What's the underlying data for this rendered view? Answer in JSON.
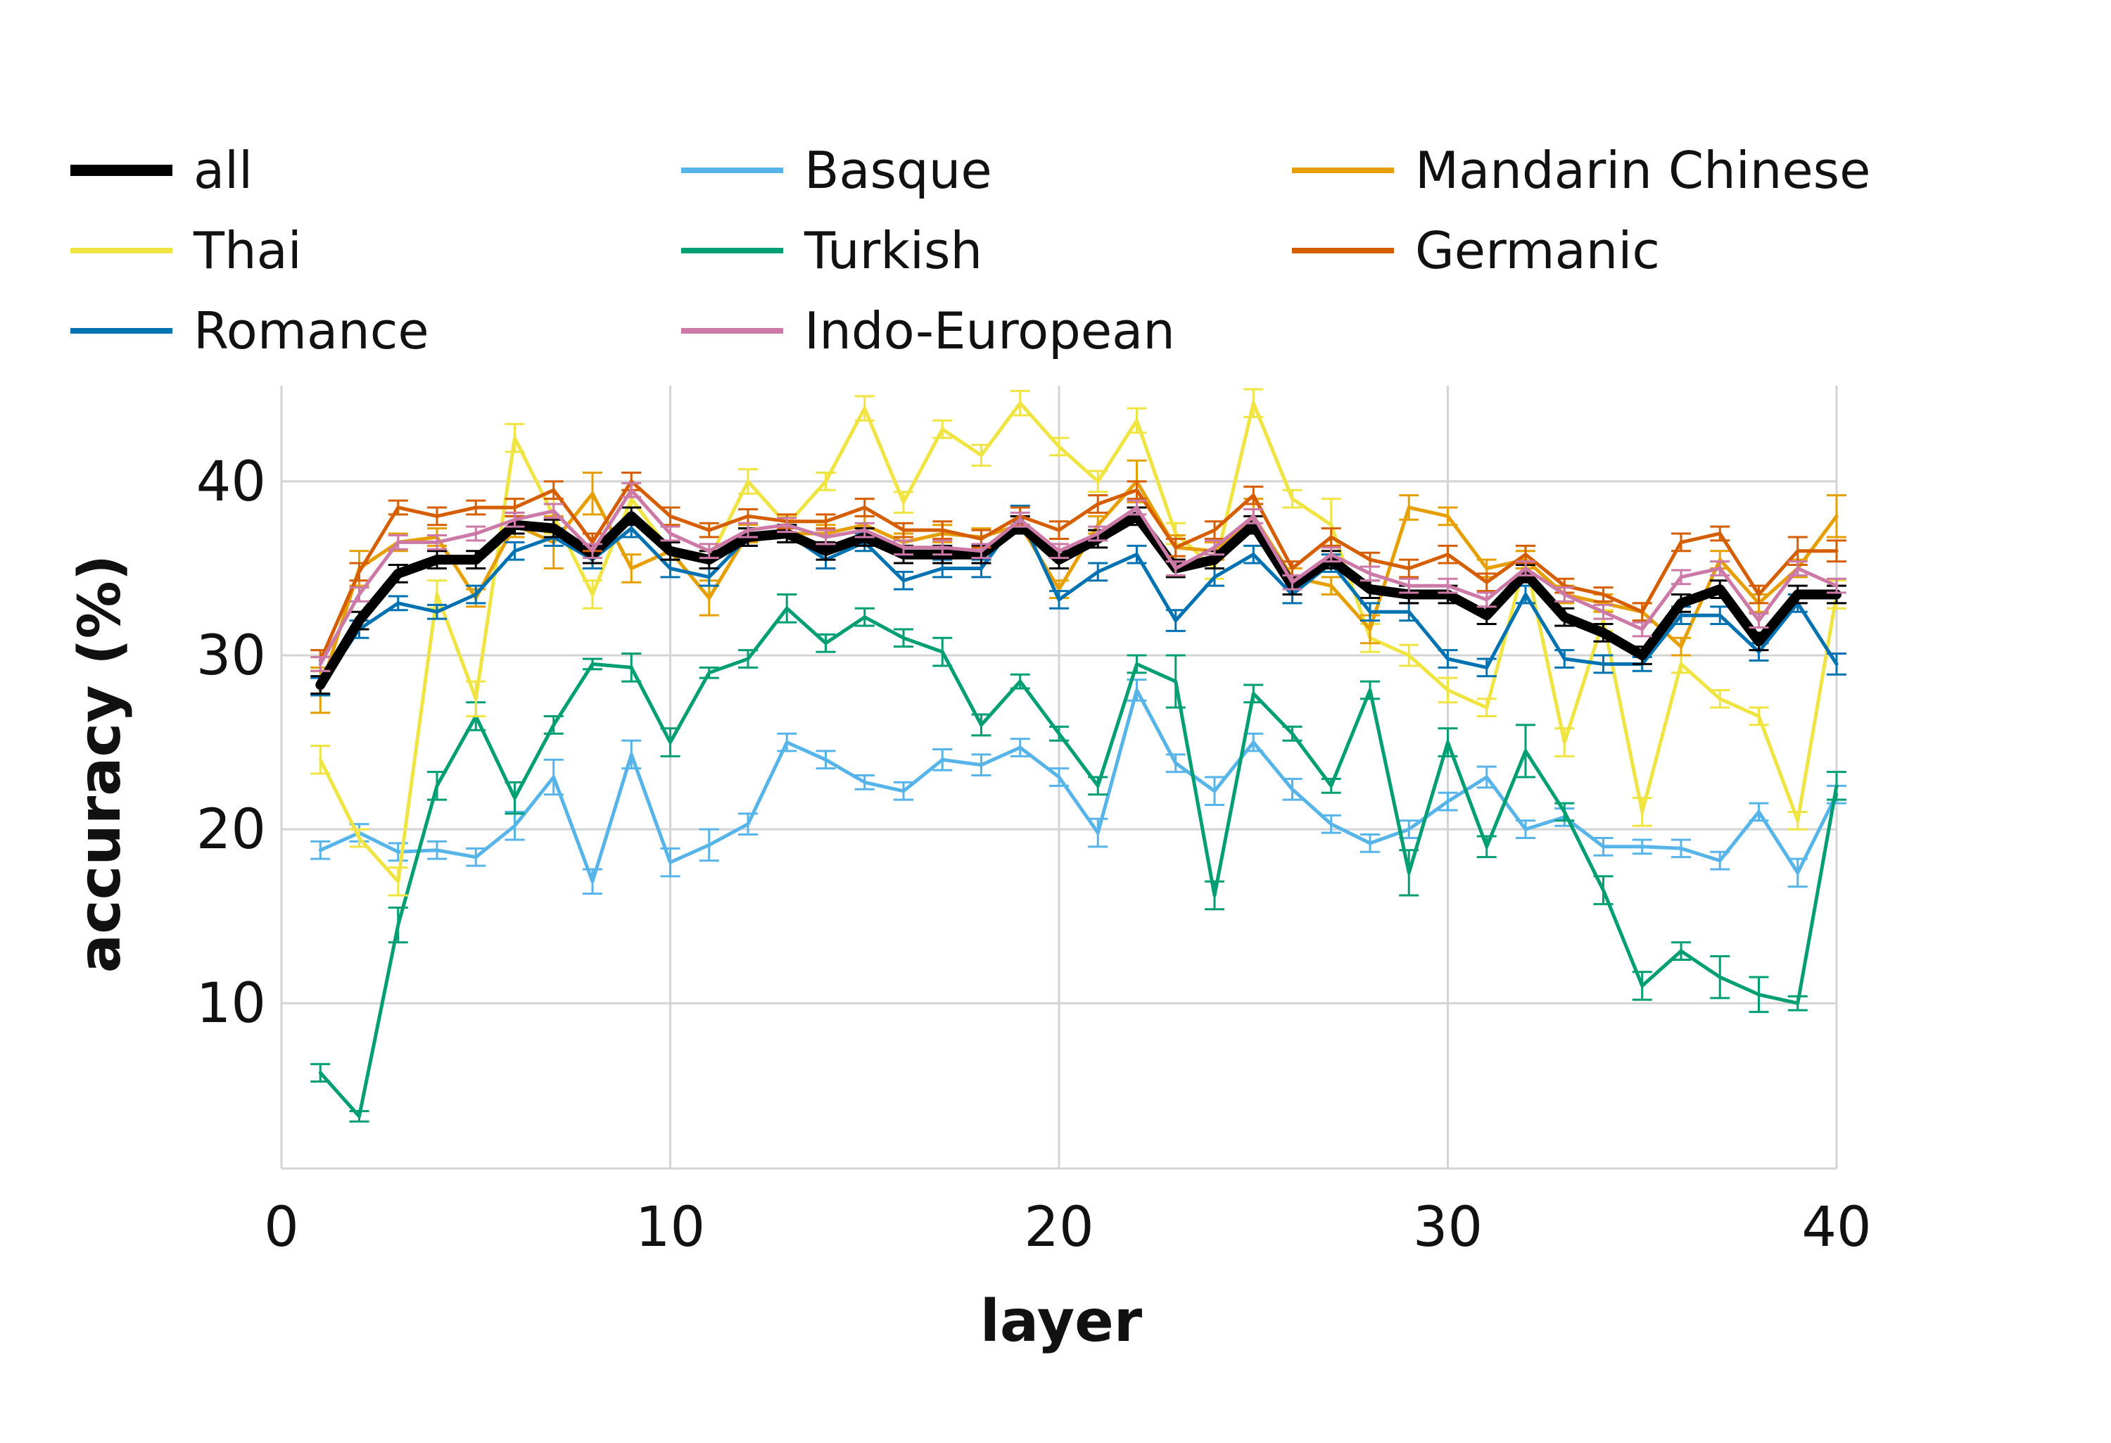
{
  "chart_data": {
    "type": "line",
    "xlabel": "layer",
    "ylabel": "accuracy (%)",
    "xlim": [
      0,
      40
    ],
    "ylim": [
      0.5,
      45.5
    ],
    "x_ticks": [
      0,
      10,
      20,
      30,
      40
    ],
    "y_ticks": [
      10,
      20,
      30,
      40
    ],
    "grid": true,
    "legend_position": "top",
    "x": [
      1,
      2,
      3,
      4,
      5,
      6,
      7,
      8,
      9,
      10,
      11,
      12,
      13,
      14,
      15,
      16,
      17,
      18,
      19,
      20,
      21,
      22,
      23,
      24,
      25,
      26,
      27,
      28,
      29,
      30,
      31,
      32,
      33,
      34,
      35,
      36,
      37,
      38,
      39,
      40
    ],
    "series": [
      {
        "name": "all",
        "color": "#000000",
        "width": "thick",
        "values": [
          28.3,
          32.0,
          34.7,
          35.5,
          35.5,
          37.5,
          37.3,
          35.8,
          38.0,
          36.0,
          35.5,
          36.8,
          37.0,
          36.0,
          36.8,
          35.8,
          35.8,
          35.8,
          37.5,
          35.5,
          36.7,
          38.0,
          35.0,
          35.5,
          37.5,
          34.0,
          35.5,
          33.8,
          33.5,
          33.5,
          32.3,
          34.7,
          32.2,
          31.3,
          30.0,
          33.0,
          33.8,
          30.8,
          33.5,
          33.5
        ],
        "errors": [
          0.5,
          0.5,
          0.5,
          0.5,
          0.5,
          0.5,
          0.5,
          0.5,
          0.5,
          0.5,
          0.5,
          0.5,
          0.5,
          0.5,
          0.5,
          0.5,
          0.5,
          0.5,
          0.5,
          0.5,
          0.5,
          0.5,
          0.5,
          0.5,
          0.5,
          0.5,
          0.5,
          0.5,
          0.5,
          0.5,
          0.5,
          0.5,
          0.5,
          0.5,
          0.5,
          0.5,
          0.5,
          0.5,
          0.5,
          0.5
        ]
      },
      {
        "name": "Basque",
        "color": "#56b4e9",
        "width": "normal",
        "values": [
          18.8,
          19.8,
          18.7,
          18.8,
          18.4,
          20.2,
          23.0,
          17.0,
          24.3,
          18.1,
          19.1,
          20.3,
          25.0,
          24.0,
          22.7,
          22.2,
          24.0,
          23.7,
          24.7,
          23.0,
          19.8,
          28.0,
          23.8,
          22.2,
          25.0,
          22.3,
          20.3,
          19.2,
          20.0,
          21.6,
          23.0,
          20.0,
          20.7,
          19.0,
          19.0,
          18.9,
          18.2,
          21.0,
          17.5,
          22.0
        ],
        "errors": [
          0.5,
          0.5,
          0.5,
          0.5,
          0.5,
          0.8,
          1.0,
          0.7,
          0.8,
          0.8,
          0.9,
          0.6,
          0.5,
          0.5,
          0.4,
          0.5,
          0.6,
          0.6,
          0.5,
          0.5,
          0.8,
          0.6,
          0.5,
          0.8,
          0.5,
          0.6,
          0.5,
          0.5,
          0.5,
          0.5,
          0.6,
          0.5,
          0.5,
          0.5,
          0.4,
          0.5,
          0.5,
          0.5,
          0.8,
          0.5
        ]
      },
      {
        "name": "Mandarin Chinese",
        "color": "#e69f00",
        "width": "normal",
        "values": [
          28.0,
          35.0,
          36.5,
          36.8,
          33.3,
          37.5,
          36.5,
          39.3,
          35.0,
          36.0,
          33.3,
          37.0,
          37.0,
          37.0,
          37.5,
          36.5,
          37.0,
          36.8,
          37.5,
          33.8,
          37.5,
          40.0,
          36.2,
          36.0,
          38.0,
          34.5,
          34.0,
          31.5,
          38.5,
          38.0,
          35.0,
          35.5,
          33.5,
          33.0,
          32.5,
          30.5,
          35.5,
          33.0,
          35.0,
          38.0
        ],
        "errors": [
          1.3,
          1.0,
          0.5,
          0.5,
          0.5,
          0.7,
          1.5,
          1.2,
          0.8,
          0.5,
          1.0,
          0.5,
          0.5,
          0.5,
          0.5,
          0.5,
          0.5,
          0.5,
          0.5,
          0.5,
          0.5,
          1.2,
          0.7,
          0.5,
          1.0,
          0.5,
          0.5,
          0.8,
          0.7,
          0.5,
          0.5,
          0.5,
          0.5,
          0.5,
          0.5,
          0.5,
          0.5,
          0.5,
          0.5,
          1.2
        ]
      },
      {
        "name": "Thai",
        "color": "#f0e442",
        "width": "normal",
        "values": [
          24.0,
          19.5,
          17.0,
          33.5,
          27.5,
          42.5,
          38.0,
          33.5,
          39.0,
          36.0,
          35.5,
          40.0,
          37.5,
          40.0,
          44.2,
          38.8,
          43.0,
          41.5,
          44.5,
          42.0,
          40.0,
          43.5,
          37.0,
          35.0,
          44.5,
          39.0,
          37.5,
          31.0,
          30.0,
          28.0,
          27.0,
          35.5,
          25.0,
          32.0,
          21.0,
          29.5,
          27.5,
          26.5,
          20.5,
          33.5
        ],
        "errors": [
          0.8,
          0.5,
          0.8,
          0.8,
          1.0,
          0.8,
          1.0,
          0.8,
          0.5,
          0.5,
          0.5,
          0.7,
          0.5,
          0.5,
          0.7,
          0.6,
          0.5,
          0.6,
          0.7,
          0.5,
          0.6,
          0.7,
          0.6,
          0.6,
          0.8,
          0.5,
          1.5,
          0.8,
          0.6,
          0.7,
          0.5,
          0.5,
          0.8,
          0.6,
          0.8,
          0.5,
          0.5,
          0.5,
          0.5,
          0.8
        ]
      },
      {
        "name": "Turkish",
        "color": "#009e73",
        "width": "normal",
        "values": [
          6.0,
          3.5,
          14.5,
          22.5,
          26.5,
          21.8,
          26.0,
          29.5,
          29.3,
          25.0,
          29.0,
          29.8,
          32.7,
          30.7,
          32.2,
          31.0,
          30.2,
          26.0,
          28.5,
          25.5,
          22.5,
          29.5,
          28.5,
          16.2,
          27.8,
          25.5,
          22.5,
          28.0,
          17.5,
          25.0,
          19.0,
          24.5,
          21.0,
          16.5,
          11.0,
          13.0,
          11.5,
          10.5,
          10.0,
          22.5
        ],
        "errors": [
          0.5,
          0.3,
          1.0,
          0.8,
          0.8,
          0.9,
          0.5,
          0.3,
          0.8,
          0.8,
          0.3,
          0.5,
          0.8,
          0.5,
          0.5,
          0.5,
          0.8,
          0.6,
          0.4,
          0.4,
          0.5,
          0.5,
          1.5,
          0.8,
          0.5,
          0.4,
          0.4,
          0.5,
          1.3,
          0.8,
          0.6,
          1.5,
          0.5,
          0.8,
          0.8,
          0.5,
          1.2,
          1.0,
          0.4,
          0.8
        ]
      },
      {
        "name": "Germanic",
        "color": "#d55e00",
        "width": "normal",
        "values": [
          29.7,
          34.8,
          38.5,
          38.0,
          38.5,
          38.5,
          39.5,
          36.5,
          40.0,
          38.0,
          37.2,
          38.0,
          37.7,
          37.7,
          38.5,
          37.2,
          37.2,
          36.7,
          38.0,
          37.2,
          38.7,
          39.5,
          36.2,
          37.2,
          39.2,
          35.0,
          36.8,
          35.5,
          35.0,
          35.8,
          34.2,
          35.8,
          34.0,
          33.5,
          32.5,
          36.5,
          37.0,
          33.5,
          36.0,
          36.0
        ],
        "errors": [
          0.6,
          0.5,
          0.4,
          0.5,
          0.4,
          0.5,
          0.5,
          0.5,
          0.5,
          0.5,
          0.4,
          0.4,
          0.4,
          0.4,
          0.5,
          0.4,
          0.5,
          0.5,
          0.5,
          0.5,
          0.5,
          0.5,
          0.5,
          0.5,
          0.5,
          0.4,
          0.5,
          0.4,
          0.5,
          0.5,
          0.5,
          0.5,
          0.4,
          0.4,
          0.5,
          0.5,
          0.4,
          0.5,
          0.8,
          0.6
        ]
      },
      {
        "name": "Romance",
        "color": "#0072b2",
        "width": "normal",
        "values": [
          28.2,
          31.5,
          33.0,
          32.5,
          33.5,
          36.0,
          36.8,
          35.5,
          37.3,
          35.0,
          34.5,
          36.8,
          37.0,
          35.5,
          36.5,
          34.3,
          35.0,
          35.0,
          38.0,
          33.2,
          34.8,
          35.8,
          32.0,
          34.5,
          35.8,
          33.5,
          35.3,
          32.5,
          32.5,
          29.8,
          29.3,
          33.5,
          29.8,
          29.5,
          29.5,
          32.3,
          32.3,
          30.2,
          33.0,
          29.5
        ],
        "errors": [
          0.5,
          0.5,
          0.4,
          0.4,
          0.5,
          0.5,
          0.5,
          0.5,
          0.5,
          0.5,
          0.5,
          0.5,
          0.5,
          0.5,
          0.5,
          0.5,
          0.5,
          0.5,
          0.6,
          0.5,
          0.5,
          0.5,
          0.6,
          0.5,
          0.5,
          0.5,
          0.5,
          0.5,
          0.5,
          0.5,
          0.5,
          0.5,
          0.5,
          0.5,
          0.4,
          0.5,
          0.5,
          0.5,
          0.5,
          0.6
        ]
      },
      {
        "name": "Indo-European",
        "color": "#cc79a7",
        "width": "normal",
        "values": [
          29.5,
          33.5,
          36.5,
          36.5,
          37.0,
          37.8,
          38.3,
          36.0,
          39.5,
          37.0,
          36.0,
          37.2,
          37.5,
          36.8,
          37.2,
          36.2,
          36.2,
          36.0,
          37.8,
          36.0,
          37.0,
          38.5,
          35.0,
          36.2,
          38.0,
          34.2,
          35.8,
          34.7,
          34.0,
          34.0,
          33.2,
          35.0,
          33.5,
          32.5,
          31.5,
          34.5,
          35.0,
          32.0,
          35.0,
          34.0
        ],
        "errors": [
          0.4,
          0.4,
          0.4,
          0.4,
          0.4,
          0.4,
          0.4,
          0.4,
          0.4,
          0.4,
          0.4,
          0.4,
          0.4,
          0.4,
          0.4,
          0.4,
          0.4,
          0.4,
          0.4,
          0.4,
          0.4,
          0.4,
          0.4,
          0.4,
          0.4,
          0.4,
          0.4,
          0.4,
          0.4,
          0.4,
          0.4,
          0.4,
          0.4,
          0.4,
          0.4,
          0.4,
          0.4,
          0.4,
          0.4,
          0.4
        ]
      }
    ],
    "legend_order": [
      "all",
      "Basque",
      "Mandarin Chinese",
      "Thai",
      "Turkish",
      "Germanic",
      "Romance",
      "Indo-European"
    ]
  }
}
